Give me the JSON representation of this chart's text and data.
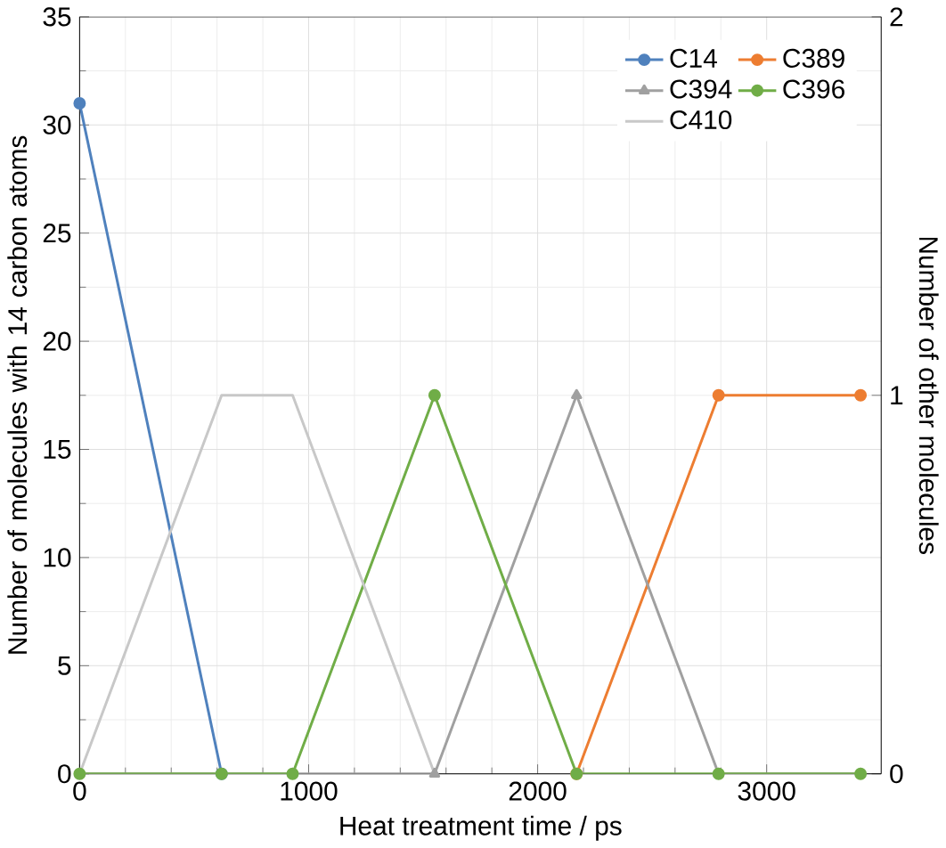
{
  "chart_data": {
    "type": "line",
    "xlabel": "Heat treatment time / ps",
    "ylabel": "Number of  molecules with 14 carbon atoms",
    "y2label": "Number of other molecules",
    "xlim": [
      0,
      3500
    ],
    "xticks": [
      0,
      1000,
      2000,
      3000
    ],
    "ylim": [
      0,
      35
    ],
    "yticks": [
      0,
      5,
      10,
      15,
      20,
      25,
      30,
      35
    ],
    "y2lim": [
      0,
      2
    ],
    "y2ticks": [
      0,
      1,
      2
    ],
    "grid": true,
    "legend": "top right",
    "series": [
      {
        "name": "C14",
        "color": "#4f81bd",
        "marker": "circle",
        "x": [
          0,
          620
        ],
        "values": [
          31,
          0
        ]
      },
      {
        "name": "C389",
        "color": "#ed7d31",
        "marker": "circle",
        "axis": "y2",
        "x": [
          2170,
          2790,
          3410
        ],
        "values": [
          0,
          1,
          1
        ]
      },
      {
        "name": "C394",
        "color": "#a0a0a0",
        "marker": "triangle",
        "axis": "y2",
        "x": [
          0,
          620,
          930,
          1550,
          2170,
          2790,
          3410
        ],
        "values": [
          0,
          0,
          0,
          0,
          1,
          0,
          0
        ]
      },
      {
        "name": "C396",
        "color": "#70ad47",
        "marker": "circle",
        "axis": "y2",
        "x": [
          0,
          620,
          930,
          1550,
          2170,
          2790,
          3410
        ],
        "values": [
          0,
          0,
          0,
          1,
          0,
          0,
          0
        ]
      },
      {
        "name": "C410",
        "color": "#c8c8c8",
        "marker": "none",
        "axis": "y2",
        "x": [
          0,
          620,
          930,
          1550
        ],
        "values": [
          0,
          1,
          1,
          0
        ]
      }
    ]
  }
}
